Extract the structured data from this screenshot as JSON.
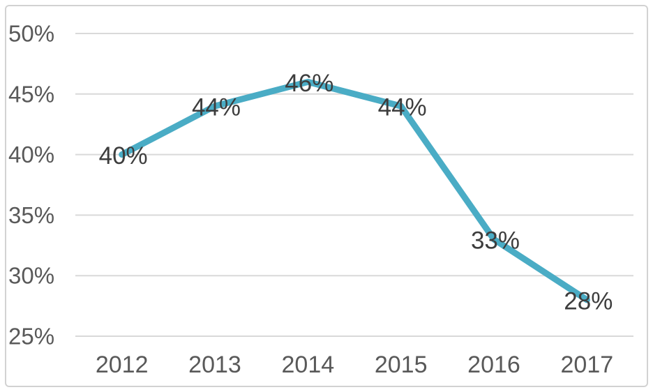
{
  "chart_data": {
    "type": "line",
    "title": "",
    "xlabel": "",
    "ylabel": "",
    "categories": [
      "2012",
      "2013",
      "2014",
      "2015",
      "2016",
      "2017"
    ],
    "series": [
      {
        "name": "",
        "values": [
          40,
          44,
          46,
          44,
          33,
          28
        ]
      }
    ],
    "data_labels": [
      "40%",
      "44%",
      "46%",
      "44%",
      "33%",
      "28%"
    ],
    "ylim": [
      25,
      50
    ],
    "ytick_values": [
      50,
      45,
      40,
      35,
      30,
      25
    ],
    "ytick_labels": [
      "50%",
      "45%",
      "40%",
      "35%",
      "30%",
      "25%"
    ],
    "grid": true,
    "legend": "none",
    "colors": {
      "line": "#4aacc5",
      "gridline": "#d9d9d9",
      "frame_border": "#d2d2d2",
      "axis_text": "#595959",
      "data_label_text": "#3d3d3d",
      "background": "#ffffff"
    }
  }
}
